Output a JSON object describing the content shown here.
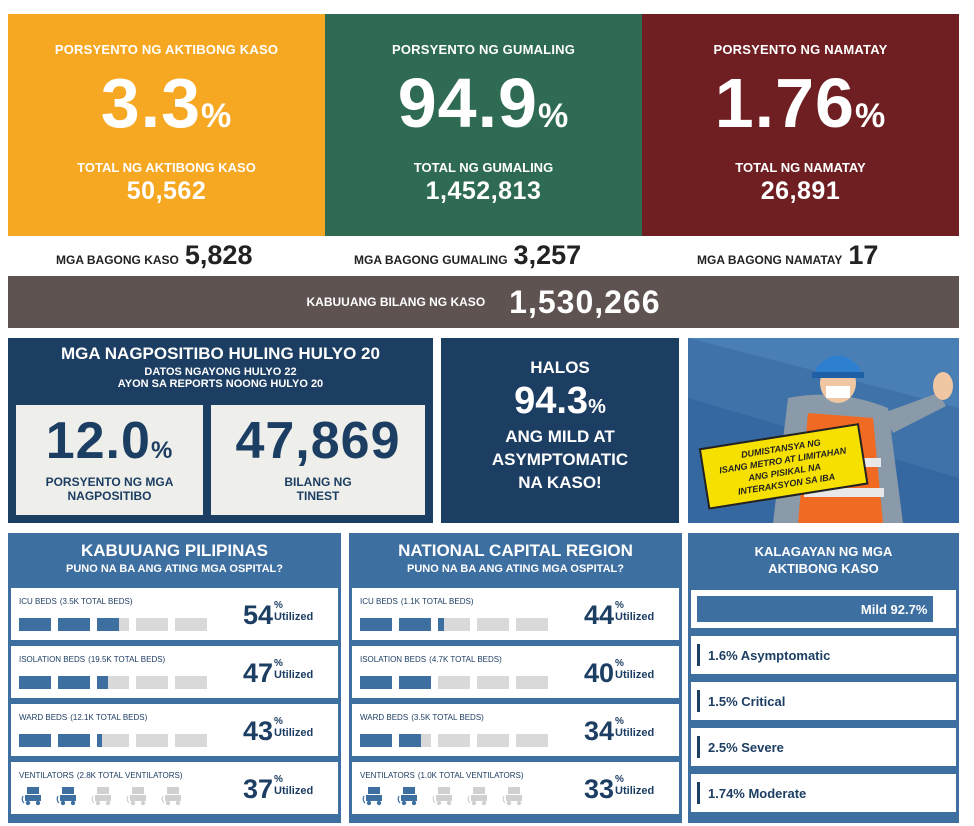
{
  "top": {
    "active": {
      "label": "PORSYENTO NG AKTIBONG KASO",
      "percent": "3.3",
      "pct_sign": "%",
      "total_label": "TOTAL NG AKTIBONG KASO",
      "total": "50,562",
      "color": "#f7a823"
    },
    "recovered": {
      "label": "PORSYENTO NG GUMALING",
      "percent": "94.9",
      "pct_sign": "%",
      "total_label": "TOTAL NG GUMALING",
      "total": "1,452,813",
      "color": "#2e6b52"
    },
    "deaths": {
      "label": "PORSYENTO NG NAMATAY",
      "percent": "1.76",
      "pct_sign": "%",
      "total_label": "TOTAL NG NAMATAY",
      "total": "26,891",
      "color": "#6f1f22"
    }
  },
  "new_cases": {
    "cases_label": "MGA BAGONG KASO",
    "cases": "5,828",
    "recovered_label": "MGA BAGONG GUMALING",
    "recovered": "3,257",
    "deaths_label": "MGA BAGONG NAMATAY",
    "deaths": "17"
  },
  "total": {
    "label": "KABUUANG BILANG NG KASO",
    "value": "1,530,266"
  },
  "positivity": {
    "title": "MGA NAGPOSITIBO HULING HULYO 20",
    "sub1": "DATOS NGAYONG HULYO 22",
    "sub2": "AYON SA REPORTS NOONG HULYO 20",
    "rate": "12.0",
    "rate_sign": "%",
    "rate_label1": "PORSYENTO NG MGA",
    "rate_label2": "NAGPOSITIBO",
    "tested": "47,869",
    "tested_label1": "BILANG NG",
    "tested_label2": "TINEST"
  },
  "mild": {
    "line1": "HALOS",
    "value": "94.3",
    "sign": "%",
    "line2": "ANG MILD AT",
    "line3": "ASYMPTOMATIC",
    "line4": "NA KASO!"
  },
  "poster": {
    "sign_text1": "DUMISTANSYA NG",
    "sign_text2": "ISANG METRO AT LIMITAHAN",
    "sign_text3": "ANG PISIKAL NA",
    "sign_text4": "INTERAKSYON SA IBA"
  },
  "ph": {
    "title": "KABUUANG PILIPINAS",
    "subtitle": "PUNO NA BA ANG ATING MGA OSPITAL?",
    "rows": [
      {
        "label": "ICU BEDS",
        "sub": "(3.5K TOTAL BEDS)",
        "pct": "54",
        "fill": 0.54
      },
      {
        "label": "ISOLATION BEDS",
        "sub": "(19.5K TOTAL BEDS)",
        "pct": "47",
        "fill": 0.47
      },
      {
        "label": "WARD BEDS",
        "sub": "(12.1K TOTAL BEDS)",
        "pct": "43",
        "fill": 0.43
      },
      {
        "label": "VENTILATORS",
        "sub": "(2.8K TOTAL VENTILATORS)",
        "pct": "37",
        "fill": 0.37
      }
    ]
  },
  "ncr": {
    "title": "NATIONAL CAPITAL REGION",
    "subtitle": "PUNO NA BA ANG ATING MGA OSPITAL?",
    "rows": [
      {
        "label": "ICU BEDS",
        "sub": "(1.1K TOTAL BEDS)",
        "pct": "44",
        "fill": 0.44
      },
      {
        "label": "ISOLATION BEDS",
        "sub": "(4.7K TOTAL BEDS)",
        "pct": "40",
        "fill": 0.4
      },
      {
        "label": "WARD BEDS",
        "sub": "(3.5K TOTAL BEDS)",
        "pct": "34",
        "fill": 0.34
      },
      {
        "label": "VENTILATORS",
        "sub": "(1.0K TOTAL VENTILATORS)",
        "pct": "33",
        "fill": 0.33
      }
    ]
  },
  "pct_sign": "%",
  "utilized": "Utilized",
  "severity": {
    "title1": "KALAGAYAN NG MGA",
    "title2": "AKTIBONG KASO",
    "items": [
      {
        "label": "Mild 92.7%",
        "value": 92.7
      },
      {
        "label": "1.6% Asymptomatic",
        "value": 1.6
      },
      {
        "label": "1.5% Critical",
        "value": 1.5
      },
      {
        "label": "2.5% Severe",
        "value": 2.5
      },
      {
        "label": "1.74% Moderate",
        "value": 1.74
      }
    ]
  },
  "colors": {
    "navy": "#1d3e63",
    "blue": "#3e6fa1",
    "grey_bar": "#d9d9d9",
    "total_bg": "#5e5351"
  }
}
